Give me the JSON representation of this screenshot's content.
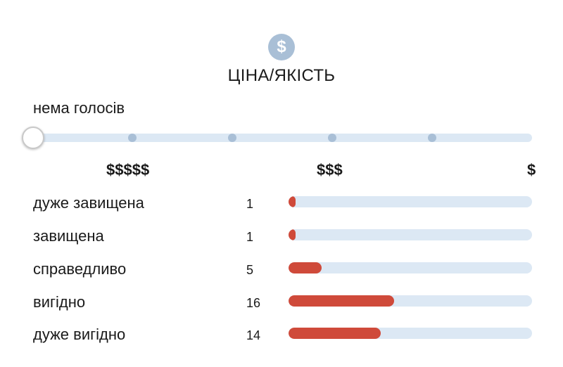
{
  "header": {
    "icon": "dollar-icon",
    "icon_color": "#a9bfd6",
    "title": "ЦІНА/ЯКІСТЬ"
  },
  "vote_status": "нема голосів",
  "slider": {
    "steps": 6,
    "selected_step": 0,
    "track_color": "#dce8f4"
  },
  "scale_labels": {
    "expensive": "$$$$$",
    "middle": "$$$",
    "cheap": "$"
  },
  "ratings": {
    "bar_color": "#cf4a3a",
    "rows": [
      {
        "label": "дуже завищена",
        "count": "1",
        "value": 1
      },
      {
        "label": "завищена",
        "count": "1",
        "value": 1
      },
      {
        "label": "справедливо",
        "count": "5",
        "value": 5
      },
      {
        "label": "вигідно",
        "count": "16",
        "value": 16
      },
      {
        "label": "дуже вигідно",
        "count": "14",
        "value": 14
      }
    ]
  }
}
